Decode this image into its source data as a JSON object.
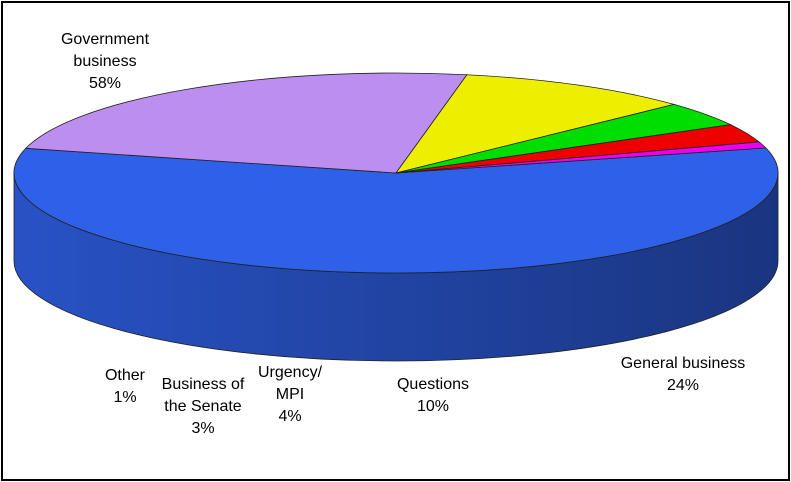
{
  "chart_data": {
    "type": "pie",
    "style": "3d",
    "title": "",
    "slices": [
      {
        "name": "Government business",
        "label_lines": [
          "Government",
          "business"
        ],
        "value": 58,
        "value_label": "58%",
        "color": "#2f61e8"
      },
      {
        "name": "General business",
        "label_lines": [
          "General business"
        ],
        "value": 24,
        "value_label": "24%",
        "color": "#bb8ef0"
      },
      {
        "name": "Questions",
        "label_lines": [
          "Questions"
        ],
        "value": 10,
        "value_label": "10%",
        "color": "#eeee00"
      },
      {
        "name": "Urgency/MPI",
        "label_lines": [
          "Urgency/",
          "MPI"
        ],
        "value": 4,
        "value_label": "4%",
        "color": "#00dd00"
      },
      {
        "name": "Business of the Senate",
        "label_lines": [
          "Business of",
          "the Senate"
        ],
        "value": 3,
        "value_label": "3%",
        "color": "#ee0000"
      },
      {
        "name": "Other",
        "label_lines": [
          "Other"
        ],
        "value": 1,
        "value_label": "1%",
        "color": "#ee00ee"
      }
    ]
  }
}
